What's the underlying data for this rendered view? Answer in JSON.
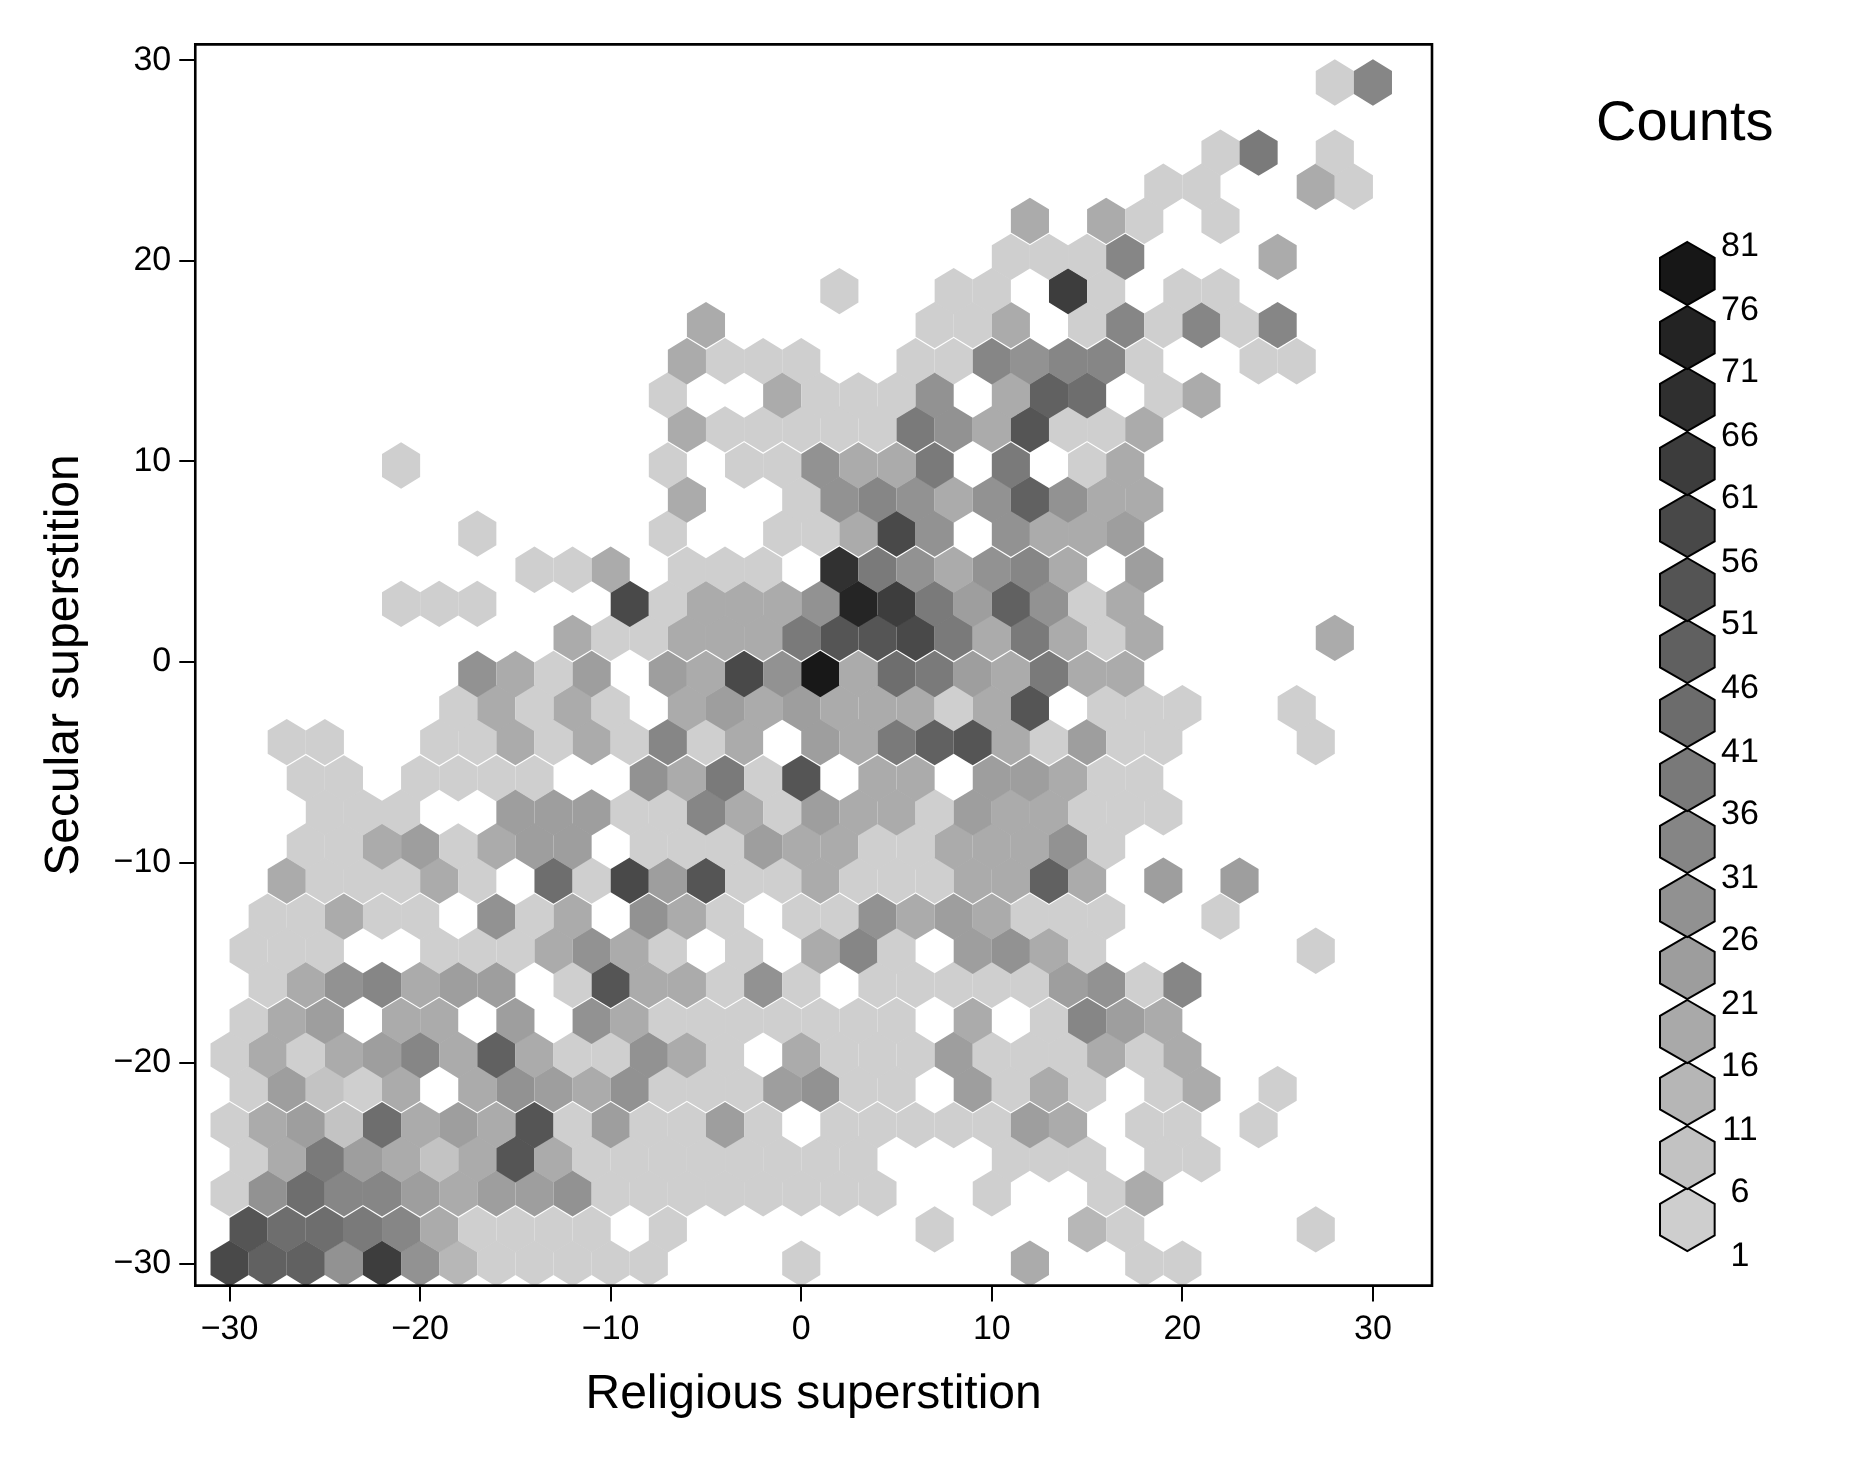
{
  "chart_data": {
    "type": "scatter",
    "xlabel": "Religious superstition",
    "ylabel": "Secular superstition",
    "clabel": "Counts",
    "xlim": [
      -31.8,
      33.1
    ],
    "ylim": [
      -31.1,
      30.8
    ],
    "xticks": [
      {
        "value": -30,
        "label": "−30"
      },
      {
        "value": -20,
        "label": "−20"
      },
      {
        "value": -10,
        "label": "−10"
      },
      0,
      10,
      20,
      30
    ],
    "yticks": [
      {
        "value": -30,
        "label": "−30"
      },
      {
        "value": -20,
        "label": "−20"
      },
      {
        "value": -10,
        "label": "−10"
      },
      0,
      10,
      20,
      30
    ],
    "clim": [
      1,
      81
    ],
    "cticks": [
      1,
      6,
      11,
      16,
      21,
      26,
      31,
      36,
      41,
      46,
      51,
      56,
      61,
      66,
      71,
      76,
      81
    ],
    "x": [
      -30,
      -28,
      -26,
      -24,
      -22,
      -20,
      -18,
      -16,
      -14,
      -12,
      -10,
      -8,
      0,
      12,
      18,
      20,
      -29,
      -27,
      -25,
      -23,
      -21,
      -19,
      -17,
      -15,
      -13,
      -11,
      -7,
      7,
      15,
      17,
      27,
      -30,
      -28,
      -26,
      -24,
      -22,
      -20,
      -18,
      -16,
      -14,
      -12,
      -10,
      -8,
      -6,
      -4,
      -2,
      0,
      2,
      4,
      10,
      16,
      18,
      -29,
      -27,
      -25,
      -23,
      -21,
      -19,
      -17,
      -15,
      -13,
      -11,
      -9,
      -7,
      -5,
      -3,
      -1,
      1,
      3,
      11,
      13,
      15,
      19,
      21,
      -30,
      -28,
      -26,
      -24,
      -22,
      -20,
      -18,
      -16,
      -14,
      -12,
      -10,
      -8,
      -6,
      -4,
      -2,
      2,
      4,
      6,
      8,
      10,
      12,
      14,
      18,
      20,
      24,
      -29,
      -27,
      -25,
      -23,
      -21,
      -17,
      -15,
      -13,
      -11,
      -9,
      -7,
      -5,
      -3,
      -1,
      1,
      3,
      5,
      9,
      11,
      13,
      15,
      19,
      21,
      25,
      -30,
      -28,
      -26,
      -24,
      -22,
      -20,
      -18,
      -16,
      -14,
      -12,
      -10,
      -8,
      -6,
      -4,
      0,
      2,
      4,
      6,
      8,
      10,
      12,
      14,
      16,
      18,
      20,
      -29,
      -27,
      -25,
      -21,
      -19,
      -15,
      -11,
      -9,
      -7,
      -5,
      -3,
      -1,
      1,
      3,
      5,
      9,
      13,
      15,
      17,
      19,
      -28,
      -26,
      -24,
      -22,
      -20,
      -18,
      -16,
      -12,
      -10,
      -8,
      -6,
      -4,
      -2,
      0,
      4,
      6,
      8,
      10,
      12,
      14,
      16,
      18,
      20,
      -29,
      -27,
      -25,
      -19,
      -17,
      -15,
      -13,
      -11,
      -9,
      -7,
      -3,
      1,
      3,
      5,
      9,
      11,
      13,
      15,
      27,
      -28,
      -26,
      -24,
      -22,
      -20,
      -16,
      -14,
      -12,
      -8,
      -6,
      -4,
      0,
      2,
      4,
      6,
      8,
      10,
      12,
      14,
      16,
      22,
      -27,
      -25,
      -23,
      -21,
      -19,
      -17,
      -13,
      -11,
      -9,
      -7,
      -5,
      -3,
      -1,
      1,
      3,
      5,
      7,
      9,
      11,
      13,
      15,
      19,
      23,
      -26,
      -24,
      -22,
      -20,
      -18,
      -16,
      -14,
      -12,
      -8,
      -6,
      -4,
      -2,
      0,
      2,
      4,
      6,
      8,
      10,
      12,
      14,
      16,
      -25,
      -23,
      -21,
      -15,
      -13,
      -11,
      -9,
      -7,
      -5,
      -3,
      -1,
      1,
      3,
      5,
      7,
      9,
      11,
      13,
      15,
      17,
      19,
      -26,
      -24,
      -20,
      -18,
      -16,
      -14,
      -8,
      -6,
      -4,
      -2,
      0,
      4,
      6,
      10,
      12,
      14,
      16,
      18,
      -27,
      -25,
      -19,
      -17,
      -15,
      -13,
      -11,
      -9,
      -7,
      -5,
      -3,
      1,
      3,
      5,
      7,
      9,
      11,
      13,
      15,
      17,
      19,
      27,
      -18,
      -16,
      -14,
      -12,
      -10,
      -6,
      -4,
      -2,
      0,
      2,
      4,
      6,
      8,
      10,
      12,
      16,
      18,
      20,
      26,
      -17,
      -15,
      -13,
      -11,
      -7,
      -5,
      -3,
      -1,
      1,
      3,
      5,
      7,
      9,
      11,
      13,
      15,
      17,
      -12,
      -10,
      -8,
      -6,
      -4,
      -2,
      0,
      2,
      4,
      6,
      8,
      10,
      12,
      14,
      16,
      18,
      28,
      -21,
      -19,
      -17,
      -9,
      -7,
      -5,
      -3,
      -1,
      1,
      3,
      5,
      7,
      9,
      11,
      13,
      15,
      17,
      -14,
      -12,
      -10,
      -6,
      -4,
      -2,
      2,
      4,
      6,
      8,
      10,
      12,
      14,
      18,
      -17,
      -7,
      -1,
      1,
      3,
      5,
      7,
      11,
      13,
      15,
      17,
      -6,
      0,
      2,
      4,
      6,
      8,
      10,
      12,
      14,
      16,
      18,
      -21,
      -7,
      -3,
      -1,
      1,
      3,
      5,
      7,
      11,
      15,
      17,
      -6,
      -4,
      -2,
      0,
      2,
      4,
      6,
      8,
      10,
      12,
      14,
      16,
      18,
      -7,
      -1,
      1,
      3,
      5,
      7,
      11,
      13,
      15,
      19,
      21,
      -6,
      -4,
      -2,
      0,
      6,
      8,
      10,
      12,
      14,
      16,
      18,
      24,
      26,
      -5,
      7,
      9,
      11,
      15,
      17,
      19,
      21,
      23,
      25,
      2,
      8,
      10,
      14,
      16,
      20,
      22,
      11,
      13,
      15,
      17,
      25,
      12,
      16,
      18,
      22,
      19,
      21,
      27,
      29,
      22,
      24,
      28,
      28,
      30
    ],
    "values": [
      -30,
      -30,
      -30,
      -30,
      -30,
      -30,
      -30,
      -30,
      -30,
      -30,
      -30,
      -30,
      -30,
      -30,
      -30,
      -30,
      -28.3,
      -28.3,
      -28.3,
      -28.3,
      -28.3,
      -28.3,
      -28.3,
      -28.3,
      -28.3,
      -28.3,
      -28.3,
      -28.3,
      -28.3,
      -28.3,
      -28.3,
      -26.5,
      -26.5,
      -26.5,
      -26.5,
      -26.5,
      -26.5,
      -26.5,
      -26.5,
      -26.5,
      -26.5,
      -26.5,
      -26.5,
      -26.5,
      -26.5,
      -26.5,
      -26.5,
      -26.5,
      -26.5,
      -26.5,
      -26.5,
      -26.5,
      -24.8,
      -24.8,
      -24.8,
      -24.8,
      -24.8,
      -24.8,
      -24.8,
      -24.8,
      -24.8,
      -24.8,
      -24.8,
      -24.8,
      -24.8,
      -24.8,
      -24.8,
      -24.8,
      -24.8,
      -24.8,
      -24.8,
      -24.8,
      -24.8,
      -24.8,
      -23.1,
      -23.1,
      -23.1,
      -23.1,
      -23.1,
      -23.1,
      -23.1,
      -23.1,
      -23.1,
      -23.1,
      -23.1,
      -23.1,
      -23.1,
      -23.1,
      -23.1,
      -23.1,
      -23.1,
      -23.1,
      -23.1,
      -23.1,
      -23.1,
      -23.1,
      -23.1,
      -23.1,
      -23.1,
      -21.3,
      -21.3,
      -21.3,
      -21.3,
      -21.3,
      -21.3,
      -21.3,
      -21.3,
      -21.3,
      -21.3,
      -21.3,
      -21.3,
      -21.3,
      -21.3,
      -21.3,
      -21.3,
      -21.3,
      -21.3,
      -21.3,
      -21.3,
      -21.3,
      -21.3,
      -21.3,
      -21.3,
      -19.6,
      -19.6,
      -19.6,
      -19.6,
      -19.6,
      -19.6,
      -19.6,
      -19.6,
      -19.6,
      -19.6,
      -19.6,
      -19.6,
      -19.6,
      -19.6,
      -19.6,
      -19.6,
      -19.6,
      -19.6,
      -19.6,
      -19.6,
      -19.6,
      -19.6,
      -19.6,
      -19.6,
      -19.6,
      -17.9,
      -17.9,
      -17.9,
      -17.9,
      -17.9,
      -17.9,
      -17.9,
      -17.9,
      -17.9,
      -17.9,
      -17.9,
      -17.9,
      -17.9,
      -17.9,
      -17.9,
      -17.9,
      -17.9,
      -17.9,
      -17.9,
      -17.9,
      -16.1,
      -16.1,
      -16.1,
      -16.1,
      -16.1,
      -16.1,
      -16.1,
      -16.1,
      -16.1,
      -16.1,
      -16.1,
      -16.1,
      -16.1,
      -16.1,
      -16.1,
      -16.1,
      -16.1,
      -16.1,
      -16.1,
      -16.1,
      -16.1,
      -16.1,
      -16.1,
      -14.4,
      -14.4,
      -14.4,
      -14.4,
      -14.4,
      -14.4,
      -14.4,
      -14.4,
      -14.4,
      -14.4,
      -14.4,
      -14.4,
      -14.4,
      -14.4,
      -14.4,
      -14.4,
      -14.4,
      -14.4,
      -14.4,
      -12.7,
      -12.7,
      -12.7,
      -12.7,
      -12.7,
      -12.7,
      -12.7,
      -12.7,
      -12.7,
      -12.7,
      -12.7,
      -12.7,
      -12.7,
      -12.7,
      -12.7,
      -12.7,
      -12.7,
      -12.7,
      -12.7,
      -12.7,
      -12.7,
      -10.9,
      -10.9,
      -10.9,
      -10.9,
      -10.9,
      -10.9,
      -10.9,
      -10.9,
      -10.9,
      -10.9,
      -10.9,
      -10.9,
      -10.9,
      -10.9,
      -10.9,
      -10.9,
      -10.9,
      -10.9,
      -10.9,
      -10.9,
      -10.9,
      -10.9,
      -10.9,
      -9.2,
      -9.2,
      -9.2,
      -9.2,
      -9.2,
      -9.2,
      -9.2,
      -9.2,
      -9.2,
      -9.2,
      -9.2,
      -9.2,
      -9.2,
      -9.2,
      -9.2,
      -9.2,
      -9.2,
      -9.2,
      -9.2,
      -9.2,
      -9.2,
      -7.5,
      -7.5,
      -7.5,
      -7.5,
      -7.5,
      -7.5,
      -7.5,
      -7.5,
      -7.5,
      -7.5,
      -7.5,
      -7.5,
      -7.5,
      -7.5,
      -7.5,
      -7.5,
      -7.5,
      -7.5,
      -7.5,
      -7.5,
      -7.5,
      -5.8,
      -5.8,
      -5.8,
      -5.8,
      -5.8,
      -5.8,
      -5.8,
      -5.8,
      -5.8,
      -5.8,
      -5.8,
      -5.8,
      -5.8,
      -5.8,
      -5.8,
      -5.8,
      -5.8,
      -5.8,
      -4,
      -4,
      -4,
      -4,
      -4,
      -4,
      -4,
      -4,
      -4,
      -4,
      -4,
      -4,
      -4,
      -4,
      -4,
      -4,
      -4,
      -4,
      -4,
      -4,
      -4,
      -4,
      -2.3,
      -2.3,
      -2.3,
      -2.3,
      -2.3,
      -2.3,
      -2.3,
      -2.3,
      -2.3,
      -2.3,
      -2.3,
      -2.3,
      -2.3,
      -2.3,
      -2.3,
      -2.3,
      -2.3,
      -2.3,
      -2.3,
      -0.6,
      -0.6,
      -0.6,
      -0.6,
      -0.6,
      -0.6,
      -0.6,
      -0.6,
      -0.6,
      -0.6,
      -0.6,
      -0.6,
      -0.6,
      -0.6,
      -0.6,
      -0.6,
      -0.6,
      1.2,
      1.2,
      1.2,
      1.2,
      1.2,
      1.2,
      1.2,
      1.2,
      1.2,
      1.2,
      1.2,
      1.2,
      1.2,
      1.2,
      1.2,
      1.2,
      1.2,
      2.9,
      2.9,
      2.9,
      2.9,
      2.9,
      2.9,
      2.9,
      2.9,
      2.9,
      2.9,
      2.9,
      2.9,
      2.9,
      2.9,
      2.9,
      2.9,
      2.9,
      4.6,
      4.6,
      4.6,
      4.6,
      4.6,
      4.6,
      4.6,
      4.6,
      4.6,
      4.6,
      4.6,
      4.6,
      4.6,
      4.6,
      6.4,
      6.4,
      6.4,
      6.4,
      6.4,
      6.4,
      6.4,
      6.4,
      6.4,
      6.4,
      6.4,
      8.1,
      8.1,
      8.1,
      8.1,
      8.1,
      8.1,
      8.1,
      8.1,
      8.1,
      8.1,
      8.1,
      9.8,
      9.8,
      9.8,
      9.8,
      9.8,
      9.8,
      9.8,
      9.8,
      9.8,
      9.8,
      9.8,
      11.6,
      11.6,
      11.6,
      11.6,
      11.6,
      11.6,
      11.6,
      11.6,
      11.6,
      11.6,
      11.6,
      11.6,
      11.6,
      13.3,
      13.3,
      13.3,
      13.3,
      13.3,
      13.3,
      13.3,
      13.3,
      13.3,
      13.3,
      13.3,
      15,
      15,
      15,
      15,
      15,
      15,
      15,
      15,
      15,
      15,
      15,
      15,
      15,
      16.8,
      16.8,
      16.8,
      16.8,
      16.8,
      16.8,
      16.8,
      16.8,
      16.8,
      16.8,
      18.5,
      18.5,
      18.5,
      18.5,
      18.5,
      18.5,
      18.5,
      20.2,
      20.2,
      20.2,
      20.2,
      20.2,
      22,
      22,
      22,
      22,
      23.7,
      23.7,
      23.7,
      23.7,
      25.4,
      25.4,
      25.4,
      28.9,
      28.9
    ],
    "cvalues": [
      58,
      48,
      48,
      28,
      63,
      28,
      13,
      3,
      3,
      3,
      3,
      3,
      3,
      18,
      3,
      3,
      53,
      43,
      43,
      38,
      33,
      18,
      3,
      3,
      3,
      3,
      3,
      3,
      13,
      3,
      3,
      3,
      28,
      43,
      33,
      33,
      23,
      18,
      23,
      23,
      28,
      3,
      3,
      3,
      3,
      3,
      3,
      3,
      3,
      3,
      3,
      18,
      3,
      18,
      38,
      23,
      18,
      8,
      18,
      53,
      18,
      3,
      3,
      3,
      3,
      3,
      3,
      3,
      3,
      3,
      3,
      3,
      3,
      3,
      3,
      18,
      23,
      8,
      43,
      18,
      23,
      18,
      53,
      3,
      23,
      3,
      3,
      23,
      3,
      3,
      3,
      3,
      3,
      3,
      23,
      18,
      3,
      3,
      3,
      3,
      23,
      8,
      3,
      18,
      18,
      28,
      23,
      18,
      28,
      3,
      3,
      3,
      23,
      28,
      3,
      3,
      23,
      3,
      18,
      3,
      3,
      18,
      3,
      3,
      18,
      3,
      18,
      23,
      33,
      18,
      48,
      18,
      3,
      3,
      28,
      18,
      3,
      18,
      3,
      3,
      3,
      23,
      3,
      3,
      3,
      18,
      3,
      18,
      3,
      18,
      23,
      18,
      18,
      23,
      28,
      18,
      3,
      3,
      3,
      3,
      3,
      3,
      3,
      18,
      3,
      33,
      23,
      18,
      3,
      18,
      28,
      33,
      18,
      23,
      23,
      3,
      53,
      18,
      18,
      3,
      28,
      3,
      3,
      3,
      3,
      3,
      3,
      23,
      28,
      3,
      33,
      3,
      3,
      3,
      3,
      3,
      3,
      18,
      28,
      18,
      3,
      3,
      18,
      33,
      3,
      23,
      28,
      18,
      3,
      3,
      3,
      3,
      18,
      3,
      3,
      28,
      3,
      18,
      28,
      18,
      3,
      3,
      3,
      28,
      18,
      23,
      18,
      3,
      3,
      3,
      3,
      18,
      3,
      3,
      3,
      18,
      3,
      43,
      3,
      58,
      23,
      53,
      3,
      3,
      18,
      3,
      3,
      3,
      18,
      18,
      48,
      18,
      23,
      23,
      3,
      3,
      18,
      23,
      3,
      18,
      23,
      23,
      3,
      3,
      3,
      23,
      18,
      18,
      3,
      3,
      18,
      18,
      18,
      28,
      3,
      3,
      3,
      3,
      23,
      23,
      23,
      3,
      3,
      33,
      18,
      3,
      23,
      18,
      18,
      3,
      23,
      18,
      18,
      3,
      3,
      3,
      3,
      3,
      3,
      3,
      3,
      3,
      28,
      18,
      38,
      3,
      53,
      18,
      18,
      23,
      23,
      18,
      3,
      3,
      3,
      3,
      3,
      3,
      18,
      3,
      18,
      3,
      33,
      3,
      18,
      23,
      18,
      38,
      48,
      53,
      18,
      3,
      23,
      3,
      3,
      3,
      3,
      18,
      3,
      18,
      3,
      18,
      23,
      18,
      23,
      18,
      18,
      18,
      3,
      18,
      53,
      3,
      3,
      3,
      3,
      28,
      18,
      3,
      23,
      23,
      18,
      58,
      28,
      78,
      18,
      43,
      38,
      23,
      18,
      38,
      18,
      18,
      18,
      3,
      3,
      18,
      18,
      18,
      38,
      53,
      53,
      58,
      38,
      18,
      38,
      18,
      3,
      18,
      18,
      3,
      3,
      3,
      58,
      3,
      18,
      18,
      18,
      28,
      73,
      63,
      38,
      23,
      48,
      28,
      3,
      18,
      3,
      3,
      18,
      3,
      3,
      3,
      68,
      38,
      28,
      18,
      28,
      33,
      18,
      23,
      3,
      3,
      3,
      3,
      18,
      58,
      28,
      28,
      18,
      18,
      23,
      18,
      3,
      28,
      33,
      28,
      18,
      28,
      48,
      28,
      18,
      18,
      3,
      3,
      3,
      3,
      28,
      18,
      18,
      38,
      38,
      3,
      18,
      18,
      3,
      3,
      3,
      3,
      3,
      38,
      28,
      18,
      53,
      3,
      3,
      18,
      3,
      18,
      3,
      3,
      3,
      28,
      18,
      48,
      43,
      3,
      18,
      18,
      3,
      3,
      3,
      3,
      3,
      33,
      28,
      33,
      33,
      3,
      3,
      3,
      18,
      3,
      3,
      18,
      3,
      33,
      3,
      33,
      3,
      33,
      3,
      3,
      3,
      63,
      3,
      3,
      3,
      3,
      3,
      3,
      33,
      18,
      18,
      18,
      3,
      3,
      3,
      3,
      18,
      3,
      3,
      38,
      3,
      3,
      33
    ]
  }
}
